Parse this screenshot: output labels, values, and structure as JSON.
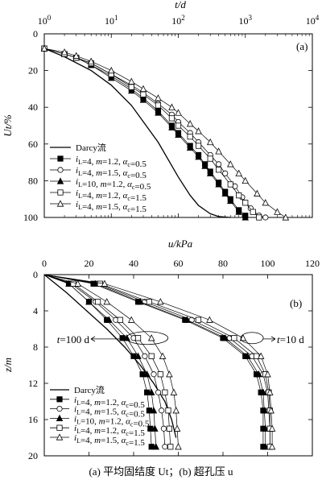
{
  "figure_caption": "(a)  平均固结度 Ut；(b)  超孔压 u",
  "legend_labels": [
    "Darcy流",
    "iL=4, m=1.2, αc=0.5",
    "iL=4, m=1.5, αc=0.5",
    "iL=10, m=1.2, αc=0.5",
    "iL=4, m=1.2, αc=1.5",
    "iL=4, m=1.5, αc=1.5"
  ],
  "chart_data": [
    {
      "type": "line",
      "panel_label": "(a)",
      "xlabel": "t/d",
      "ylabel": "Ut/%",
      "x_scale": "log",
      "xlim": [
        1,
        10000
      ],
      "ylim": [
        0,
        100
      ],
      "y_reversed": true,
      "x_tick_labels": [
        "10^0",
        "10^1",
        "10^2",
        "10^3",
        "10^4"
      ],
      "y_tick_labels": [
        "0",
        "20",
        "40",
        "60",
        "80",
        "100"
      ],
      "legend_position": "bottom-left",
      "series": [
        {
          "name": "Darcy流",
          "marker": "none",
          "x": [
            1,
            2,
            5,
            10,
            20,
            50,
            100,
            150,
            200,
            300,
            400,
            600
          ],
          "y": [
            8,
            12.5,
            20,
            28,
            39,
            59,
            78,
            88,
            93.5,
            98,
            99.5,
            100
          ]
        },
        {
          "name": "iL=4, m=1.2, αc=0.5",
          "marker": "filled-square",
          "x": [
            1,
            2,
            3,
            5,
            10,
            20,
            30,
            50,
            80,
            100,
            150,
            200,
            250,
            300,
            400,
            500,
            600,
            800,
            1000
          ],
          "y": [
            8,
            11,
            13,
            17,
            23,
            30,
            35,
            42,
            50,
            54,
            61,
            66,
            71,
            75,
            81,
            86,
            90,
            96,
            99
          ]
        },
        {
          "name": "iL=4, m=1.5, αc=0.5",
          "marker": "open-circle",
          "x": [
            1,
            2,
            3,
            5,
            10,
            20,
            30,
            50,
            80,
            100,
            150,
            200,
            300,
            400,
            500,
            700,
            900,
            1200,
            1600,
            2000
          ],
          "y": [
            8,
            11,
            13,
            16,
            22,
            28,
            32,
            38,
            44,
            48,
            54,
            59,
            66,
            71,
            76,
            83,
            89,
            95,
            99,
            100
          ]
        },
        {
          "name": "iL=10, m=1.2, αc=0.5",
          "marker": "filled-triangle",
          "x": [
            1,
            2,
            3,
            5,
            10,
            20,
            30,
            50,
            80,
            100,
            150,
            200,
            250,
            300,
            400,
            500,
            600,
            800,
            1000
          ],
          "y": [
            8,
            11,
            13,
            17,
            24,
            31,
            36,
            43,
            51,
            55,
            62,
            67,
            72,
            76,
            82,
            87,
            91,
            97,
            100
          ]
        },
        {
          "name": "iL=4, m=1.2, αc=1.5",
          "marker": "open-square",
          "x": [
            1,
            2,
            3,
            5,
            10,
            20,
            30,
            50,
            80,
            100,
            150,
            200,
            300,
            400,
            600,
            800,
            1000,
            1300,
            1600
          ],
          "y": [
            8,
            11,
            13,
            16,
            22,
            29,
            33,
            39,
            46,
            50,
            56,
            61,
            68,
            74,
            82,
            88,
            92,
            97,
            100
          ]
        },
        {
          "name": "iL=4, m=1.5, αc=1.5",
          "marker": "open-triangle",
          "x": [
            1,
            2,
            3,
            5,
            10,
            20,
            30,
            50,
            80,
            100,
            150,
            200,
            300,
            400,
            600,
            800,
            1000,
            1500,
            2000,
            3000,
            4000
          ],
          "y": [
            8,
            10,
            12,
            15,
            20,
            26,
            30,
            35,
            40,
            43,
            49,
            53,
            59,
            64,
            71,
            76,
            80,
            87,
            92,
            97,
            100
          ]
        }
      ]
    },
    {
      "type": "line",
      "panel_label": "(b)",
      "xlabel": "u/kPa",
      "ylabel": "z/m",
      "xlim": [
        0,
        120
      ],
      "ylim": [
        0,
        20
      ],
      "y_reversed": true,
      "x_tick_labels": [
        "0",
        "20",
        "40",
        "60",
        "80",
        "100",
        "120"
      ],
      "y_tick_labels": [
        "0",
        "4",
        "8",
        "12",
        "16",
        "20"
      ],
      "legend_position": "bottom-left",
      "annotations": [
        "t=100 d",
        "t=10 d"
      ],
      "series": [
        {
          "name": "Darcy流",
          "marker": "none",
          "u": [
            0,
            10,
            19,
            28,
            36,
            43,
            49,
            54,
            57,
            59
          ],
          "z": [
            0,
            2,
            4,
            6,
            8,
            10,
            12,
            14,
            16,
            18
          ]
        },
        {
          "name": "iL=4, m=1.2, αc=0.5",
          "marker": "filled-square",
          "curves": [
            {
              "label": "t=100 d",
              "u": [
                0,
                11,
                20,
                28,
                35,
                40,
                44,
                46,
                47,
                47.5,
                48
              ],
              "z": [
                0,
                1,
                3,
                5,
                7,
                9,
                11,
                13,
                15,
                17,
                19
              ]
            },
            {
              "label": "t=10 d",
              "u": [
                0,
                22,
                42,
                63,
                80,
                90,
                95,
                97,
                98,
                98,
                98
              ],
              "z": [
                0,
                1,
                3,
                5,
                7,
                9,
                11,
                13,
                15,
                17,
                19
              ]
            }
          ]
        },
        {
          "name": "iL=4, m=1.5, αc=0.5",
          "marker": "open-circle",
          "curves": [
            {
              "label": "t=100 d",
              "u": [
                0,
                12,
                23,
                32,
                40,
                45,
                49,
                51,
                52.5,
                53.5,
                54
              ],
              "z": [
                0,
                1,
                3,
                5,
                7,
                9,
                11,
                13,
                15,
                17,
                19
              ]
            },
            {
              "label": "t=10 d",
              "u": [
                0,
                24,
                45,
                66,
                83,
                93,
                98,
                100,
                100.5,
                101,
                101
              ],
              "z": [
                0,
                1,
                3,
                5,
                7,
                9,
                11,
                13,
                15,
                17,
                19
              ]
            }
          ]
        },
        {
          "name": "iL=10, m=1.2, αc=0.5",
          "marker": "filled-triangle",
          "curves": [
            {
              "label": "t=100 d",
              "u": [
                0,
                11,
                20,
                29,
                37,
                42,
                46,
                48,
                49,
                49.5,
                50
              ],
              "z": [
                0,
                1,
                3,
                5,
                7,
                9,
                11,
                13,
                15,
                17,
                19
              ]
            },
            {
              "label": "t=10 d",
              "u": [
                0,
                23,
                43,
                64,
                81,
                91,
                96,
                98,
                98.5,
                99,
                99
              ],
              "z": [
                0,
                1,
                3,
                5,
                7,
                9,
                11,
                13,
                15,
                17,
                19
              ]
            }
          ]
        },
        {
          "name": "iL=4, m=1.2, αc=1.5",
          "marker": "open-square",
          "curves": [
            {
              "label": "t=100 d",
              "u": [
                0,
                13,
                24,
                34,
                42,
                48,
                52,
                54,
                55.5,
                56,
                56.5
              ],
              "z": [
                0,
                1,
                3,
                5,
                7,
                9,
                11,
                13,
                15,
                17,
                19
              ]
            },
            {
              "label": "t=10 d",
              "u": [
                0,
                25,
                47,
                69,
                85,
                95,
                99,
                100.5,
                101,
                101,
                101
              ],
              "z": [
                0,
                1,
                3,
                5,
                7,
                9,
                11,
                13,
                15,
                17,
                19
              ]
            }
          ]
        },
        {
          "name": "iL=4, m=1.5, αc=1.5",
          "marker": "open-triangle",
          "curves": [
            {
              "label": "t=100 d",
              "u": [
                0,
                15,
                28,
                39,
                48,
                53,
                56,
                58,
                59,
                59.5,
                60
              ],
              "z": [
                0,
                1,
                3,
                5,
                7,
                9,
                11,
                13,
                15,
                17,
                19
              ]
            },
            {
              "label": "t=10 d",
              "u": [
                0,
                27,
                52,
                74,
                89,
                97,
                100,
                101,
                101.5,
                102,
                102
              ],
              "z": [
                0,
                1,
                3,
                5,
                7,
                9,
                11,
                13,
                15,
                17,
                19
              ]
            }
          ]
        }
      ]
    }
  ]
}
